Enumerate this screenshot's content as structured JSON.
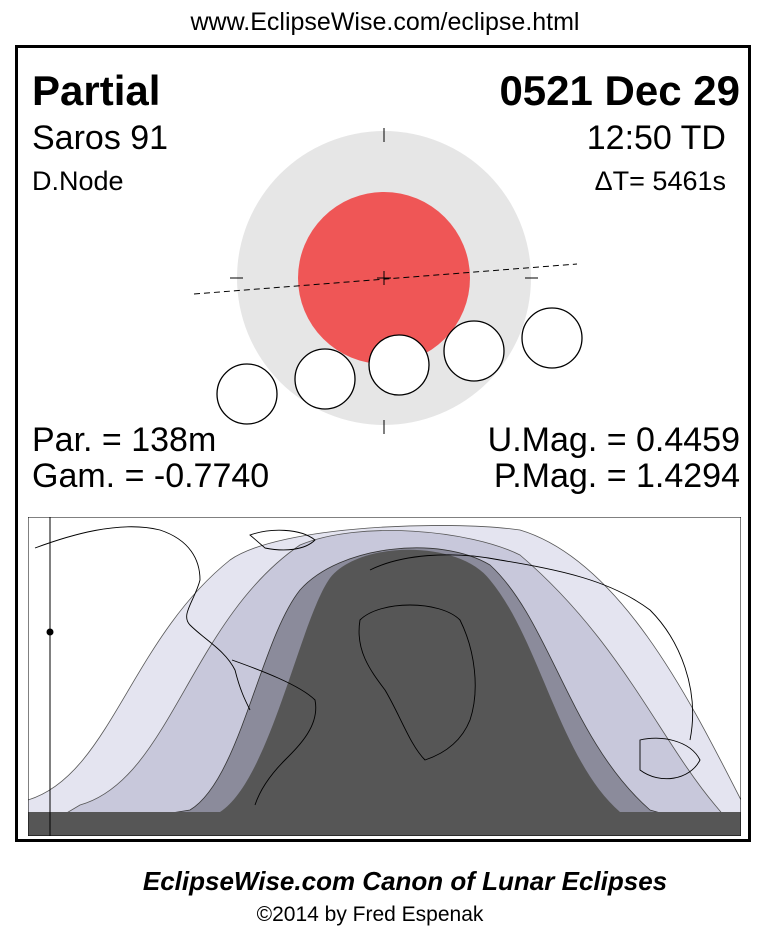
{
  "url": "www.EclipseWise.com/eclipse.html",
  "eclipse": {
    "type": "Partial",
    "date": "0521 Dec 29",
    "saros": "Saros  91",
    "time": "12:50 TD",
    "node": "D.Node",
    "delta_t": "ΔT=   5461s"
  },
  "stats": {
    "partial_duration": "Par. = 138m",
    "gamma": "Gam. = -0.7740",
    "umbral_mag": "U.Mag. = 0.4459",
    "penumbral_mag": "P.Mag. = 1.4294"
  },
  "colors": {
    "penumbra": "#e6e6e6",
    "umbra": "#ef5656",
    "map_full_shadow": "#565656",
    "map_partial_shadow": "#8b8b9b",
    "map_penumbral_shadow": "#c8c8db",
    "map_outer_penumbral": "#e4e4f0"
  },
  "footer": {
    "title": "EclipseWise.com Canon of Lunar Eclipses",
    "copyright": "©2014 by Fred Espenak"
  }
}
